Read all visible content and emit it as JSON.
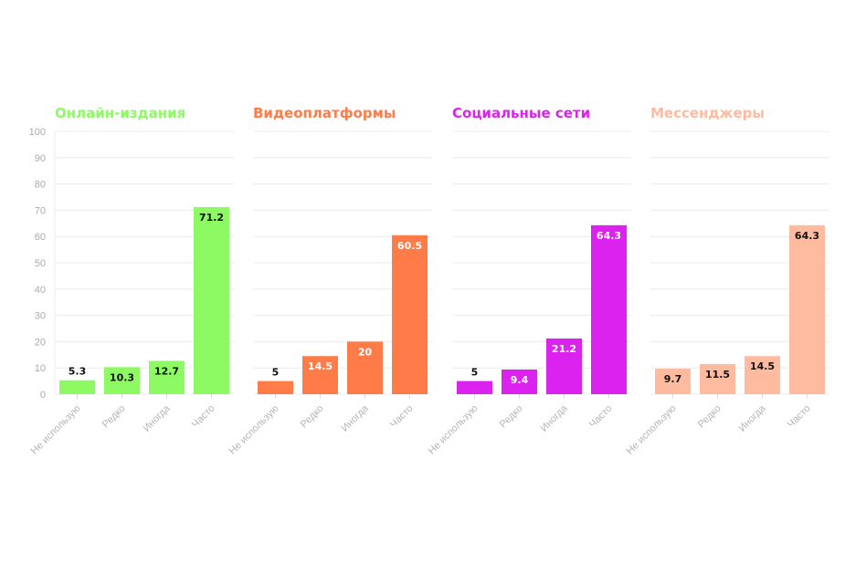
{
  "chart_data": [
    {
      "type": "bar",
      "title": "Онлайн-издания",
      "color": "#8dfa63",
      "label_color": "#111111",
      "categories": [
        "Не использую",
        "Редко",
        "Иногда",
        "Часто"
      ],
      "values": [
        5.3,
        10.3,
        12.7,
        71.2
      ],
      "ylim": [
        0,
        100
      ],
      "yticks": [
        0,
        10,
        20,
        30,
        40,
        50,
        60,
        70,
        80,
        90,
        100
      ],
      "grid": true
    },
    {
      "type": "bar",
      "title": "Видеоплатформы",
      "color": "#ff7c48",
      "label_color": "#ffffff",
      "categories": [
        "Не использую",
        "Редко",
        "Иногда",
        "Часто"
      ],
      "values": [
        5,
        14.5,
        20,
        60.5
      ],
      "ylim": [
        0,
        100
      ],
      "grid": true
    },
    {
      "type": "bar",
      "title": "Социальные сети",
      "color": "#dc22ee",
      "label_color": "#ffffff",
      "categories": [
        "Не использую",
        "Редко",
        "Иногда",
        "Часто"
      ],
      "values": [
        5,
        9.4,
        21.2,
        64.3
      ],
      "ylim": [
        0,
        100
      ],
      "grid": true
    },
    {
      "type": "bar",
      "title": "Мессенджеры",
      "color": "#ffbba0",
      "label_color": "#111111",
      "categories": [
        "Не использую",
        "Редко",
        "Иногда",
        "Часто"
      ],
      "values": [
        9.7,
        11.5,
        14.5,
        64.3
      ],
      "ylim": [
        0,
        100
      ],
      "grid": true
    }
  ]
}
